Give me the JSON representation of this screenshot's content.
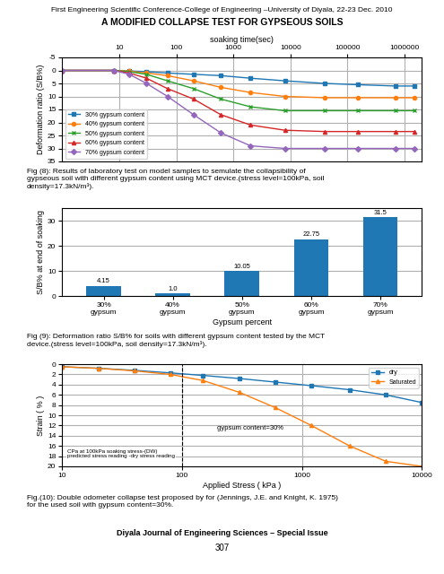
{
  "title": "A MODIFIED COLLAPSE TEST FOR GYPSEOUS SOILS",
  "subtitle": "First Engineering Scientific Conference-College of Engineering –University of Diyala, 22-23 Dec. 2010",
  "annotations": [
    "Diyala Journal of Engineering Sciences – Special Issue",
    "307"
  ],
  "chart_data": [
    {
      "type": "line",
      "xlabel": "soaking time(sec)",
      "ylabel": "Deformation ratio (S/B%)",
      "log": "x",
      "xlim": [
        1,
        2000000
      ],
      "ylim": [
        35,
        -5
      ],
      "xticks": [
        10,
        100,
        1000,
        10000,
        100000,
        1000000
      ],
      "yticks": [
        -5,
        0,
        5,
        10,
        15,
        20,
        25,
        30,
        35
      ],
      "grid": true,
      "legend": "lower left",
      "x": [
        1,
        8,
        15,
        30,
        70,
        200,
        600,
        2000,
        8000,
        40000,
        150000,
        700000,
        1500000
      ],
      "series": [
        {
          "name": "30% gypsum content",
          "marker": "square",
          "line_style": "solid",
          "values": [
            0,
            0,
            0.2,
            0.5,
            1.0,
            1.5,
            2.0,
            3.0,
            4.0,
            5.0,
            5.5,
            6.0,
            6.0
          ]
        },
        {
          "name": "40% gypsum content",
          "marker": "circle",
          "line_style": "solid",
          "values": [
            0,
            0,
            0.3,
            1.0,
            2.0,
            4.0,
            6.5,
            8.5,
            10.0,
            10.5,
            10.5,
            10.5,
            10.5
          ]
        },
        {
          "name": "50% gypsum content",
          "marker": "x",
          "line_style": "solid",
          "values": [
            0,
            0,
            0.5,
            1.5,
            4.0,
            7.0,
            11.0,
            14.0,
            15.5,
            15.5,
            15.5,
            15.5,
            15.5
          ]
        },
        {
          "name": "60% gypsum content",
          "marker": "triangle",
          "line_style": "solid",
          "values": [
            0,
            0,
            1.0,
            3.0,
            7.0,
            11.0,
            17.0,
            21.0,
            23.0,
            23.5,
            23.5,
            23.5,
            23.5
          ]
        },
        {
          "name": "70% gypsum content",
          "marker": "diamond",
          "line_style": "solid",
          "values": [
            0,
            0,
            1.5,
            5.0,
            10.0,
            17.0,
            24.0,
            29.0,
            30.0,
            30.0,
            30.0,
            30.0,
            30.0
          ]
        }
      ],
      "caption": "Fig (8): Results of laboratory test on model samples to semulate the collapsibility of\ngypseous soil with different gypsum content using MCT device.(stress level=100kPa, soil\ndensity=17.3kN/m³)."
    },
    {
      "type": "bar",
      "xlabel": "Gypsum percent",
      "ylabel": "S/B% at end of soaking",
      "categories": [
        "30%\ngypsum",
        "40%\ngypsum",
        "50%\ngypsum",
        "60%\ngypsum",
        "70%\ngypsum"
      ],
      "values": [
        4.15,
        1.0,
        10.05,
        22.75,
        31.5
      ],
      "value_labels": [
        "4.15",
        "1.0",
        "10.05",
        "22.75",
        "31.5"
      ],
      "data_labels": true,
      "ylim": [
        0,
        35
      ],
      "yticks": [
        0,
        10,
        20,
        30
      ],
      "grid": "y",
      "caption": "Fig (9): Deformation ratio S/B% for soils with different gypsum content tested by the MCT\ndevice.(stress level=100kPa, soil density=17.3kN/m³)."
    },
    {
      "type": "line",
      "xlabel": "Applied Stress ( kPa )",
      "ylabel": "Strain ( % )",
      "log": "x",
      "xlim": [
        10,
        10000
      ],
      "ylim": [
        20,
        0
      ],
      "xticks": [
        10,
        100,
        1000,
        10000
      ],
      "yticks": [
        0,
        2,
        4,
        6,
        8,
        10,
        12,
        14,
        16,
        18,
        20
      ],
      "grid": true,
      "legend": "upper right",
      "vlines": [
        100
      ],
      "x": [
        10,
        20,
        40,
        80,
        150,
        300,
        600,
        1200,
        2500,
        5000,
        10000
      ],
      "series": [
        {
          "name": "dry",
          "marker": "square",
          "line_style": "solid",
          "values": [
            0.5,
            0.8,
            1.2,
            1.7,
            2.2,
            2.8,
            3.5,
            4.2,
            5.0,
            6.0,
            7.5
          ]
        },
        {
          "name": "Saturated",
          "marker": "triangle",
          "line_style": "solid",
          "values": [
            0.5,
            0.8,
            1.3,
            2.0,
            3.2,
            5.5,
            8.5,
            12.0,
            16.0,
            19.0,
            20.0
          ]
        }
      ],
      "annotations": [
        {
          "text": "gypsum content=30%",
          "x": 700,
          "y": 12
        },
        {
          "text": "CPa at 100kPa soaking stress-(DW)\npredicted stress reading -dry stress reading",
          "x": 11,
          "y": 18.5
        }
      ],
      "caption": "Fig.(10): Double odometer collapse test proposed by for (Jennings, J.E. and Knight, K. 1975)\nfor the used soil with gypsum content=30%."
    }
  ]
}
